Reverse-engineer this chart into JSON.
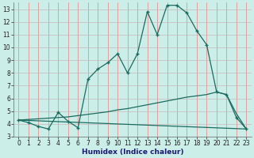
{
  "xlabel": "Humidex (Indice chaleur)",
  "xlim": [
    -0.5,
    23.5
  ],
  "ylim": [
    3,
    13.5
  ],
  "xticks": [
    0,
    1,
    2,
    3,
    4,
    5,
    6,
    7,
    8,
    9,
    10,
    11,
    12,
    13,
    14,
    15,
    16,
    17,
    18,
    19,
    20,
    21,
    22,
    23
  ],
  "yticks": [
    3,
    4,
    5,
    6,
    7,
    8,
    9,
    10,
    11,
    12,
    13
  ],
  "bg_color": "#cceee8",
  "line_color": "#1a6b60",
  "grid_color_v": "#e88080",
  "grid_color_h": "#c8b8b8",
  "line1_x": [
    0,
    1,
    2,
    3,
    4,
    5,
    6,
    7,
    8,
    9,
    10,
    11,
    12,
    13,
    14,
    15,
    16,
    17,
    18,
    19,
    20,
    21,
    22,
    23
  ],
  "line1_y": [
    4.3,
    4.1,
    3.8,
    3.6,
    4.9,
    4.2,
    3.7,
    7.5,
    8.3,
    8.8,
    9.5,
    8.0,
    9.5,
    12.8,
    11.0,
    13.3,
    13.3,
    12.7,
    11.3,
    10.2,
    6.5,
    6.3,
    4.5,
    3.6
  ],
  "line2_x": [
    0,
    23
  ],
  "line2_y": [
    4.3,
    3.6
  ],
  "line3_x": [
    0,
    1,
    2,
    3,
    4,
    5,
    6,
    7,
    8,
    9,
    10,
    11,
    12,
    13,
    14,
    15,
    16,
    17,
    18,
    19,
    20,
    21,
    22,
    23
  ],
  "line3_y": [
    4.3,
    4.35,
    4.4,
    4.45,
    4.5,
    4.55,
    4.65,
    4.75,
    4.85,
    4.95,
    5.1,
    5.2,
    5.35,
    5.5,
    5.65,
    5.8,
    5.95,
    6.1,
    6.2,
    6.3,
    6.5,
    6.3,
    4.8,
    3.6
  ]
}
